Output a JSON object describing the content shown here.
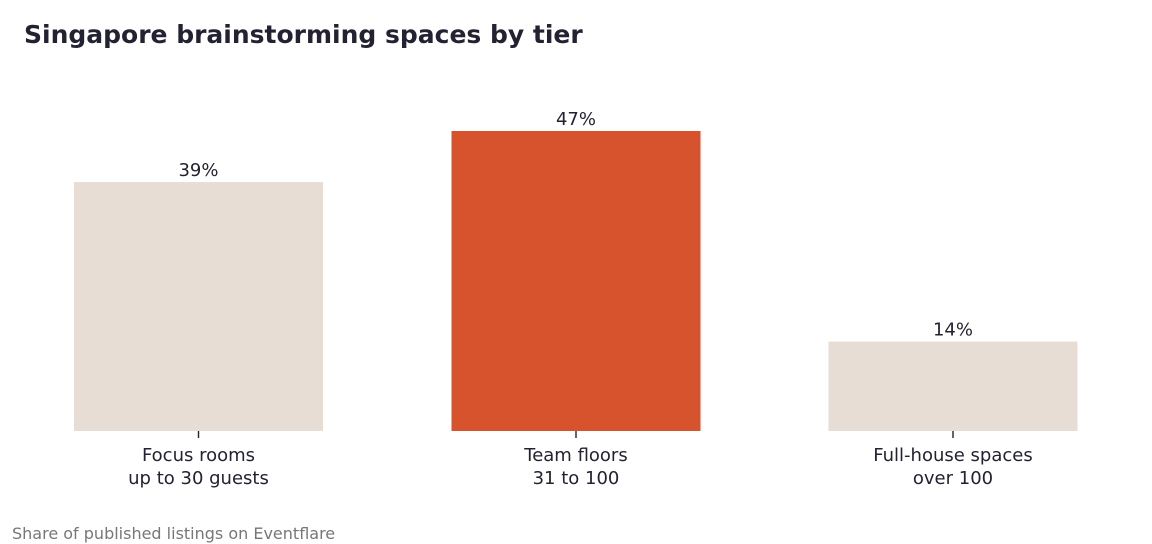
{
  "chart_title": "Singapore brainstorming spaces by tier",
  "footnote": "Share of published listings on Eventflare",
  "chart_data": {
    "type": "bar",
    "title": "Singapore brainstorming spaces by tier",
    "categories": [
      [
        "Focus rooms",
        "up to 30 guests"
      ],
      [
        "Team floors",
        "31 to 100"
      ],
      [
        "Full-house spaces",
        "over 100"
      ]
    ],
    "values": [
      39,
      47,
      14
    ],
    "value_labels": [
      "39%",
      "47%",
      "14%"
    ],
    "unit": "%",
    "highlight_index": 1,
    "colors": {
      "base": "#e7ddd4",
      "highlight": "#d6532d",
      "text": "#222232",
      "footnote": "#777777"
    },
    "ylim": [
      0,
      47
    ],
    "grid": false,
    "legend": "none",
    "xlabel": "",
    "ylabel": ""
  }
}
